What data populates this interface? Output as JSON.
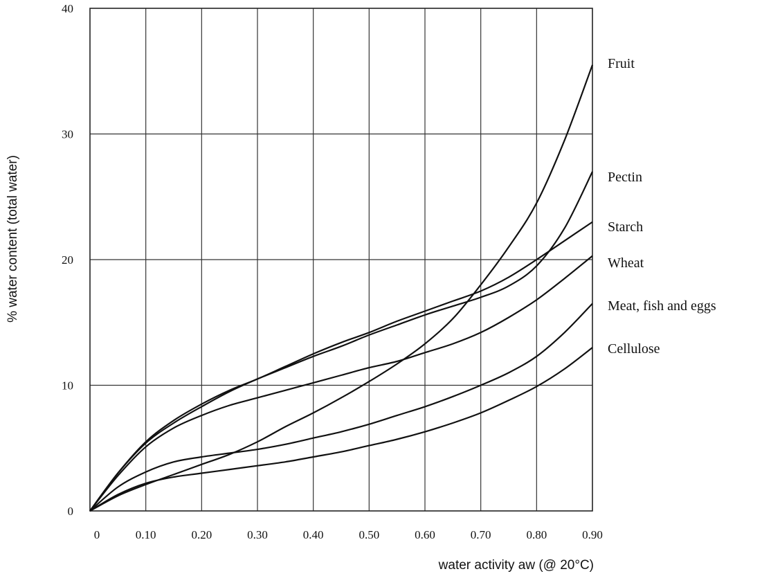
{
  "chart_data": {
    "type": "line",
    "xlabel": "water activity aw (@ 20°C)",
    "ylabel": "% water content (total water)",
    "xlim": [
      0,
      0.9
    ],
    "ylim": [
      0,
      40
    ],
    "x_ticks": [
      "0",
      "0.10",
      "0.20",
      "0.30",
      "0.40",
      "0.50",
      "0.60",
      "0.70",
      "0.80",
      "0.90"
    ],
    "y_ticks": [
      "0",
      "10",
      "20",
      "30",
      "40"
    ],
    "grid": true,
    "x_grid": [
      0.1,
      0.2,
      0.3,
      0.4,
      0.5,
      0.6,
      0.7,
      0.8
    ],
    "y_grid": [
      10,
      20,
      30
    ],
    "x": [
      0,
      0.05,
      0.1,
      0.15,
      0.2,
      0.25,
      0.3,
      0.35,
      0.4,
      0.45,
      0.5,
      0.55,
      0.6,
      0.65,
      0.7,
      0.75,
      0.8,
      0.85,
      0.9
    ],
    "series": [
      {
        "name": "Fruit",
        "values": [
          0,
          1.2,
          2.1,
          2.9,
          3.7,
          4.5,
          5.5,
          6.7,
          7.8,
          9.0,
          10.3,
          11.7,
          13.3,
          15.3,
          18.0,
          21.0,
          24.5,
          29.5,
          35.5
        ]
      },
      {
        "name": "Pectin",
        "values": [
          0,
          3.0,
          5.4,
          7.0,
          8.3,
          9.5,
          10.5,
          11.4,
          12.3,
          13.1,
          14.0,
          14.8,
          15.6,
          16.3,
          17.0,
          17.9,
          19.5,
          22.5,
          27.0
        ]
      },
      {
        "name": "Starch",
        "values": [
          0,
          3.0,
          5.5,
          7.2,
          8.5,
          9.6,
          10.5,
          11.5,
          12.5,
          13.4,
          14.2,
          15.1,
          15.9,
          16.7,
          17.5,
          18.6,
          20.0,
          21.5,
          23.0
        ]
      },
      {
        "name": "Wheat",
        "values": [
          0,
          2.8,
          5.1,
          6.6,
          7.6,
          8.4,
          9.0,
          9.6,
          10.2,
          10.8,
          11.4,
          11.9,
          12.6,
          13.3,
          14.2,
          15.4,
          16.8,
          18.5,
          20.3
        ]
      },
      {
        "name": "Meat, fish and eggs",
        "values": [
          0,
          1.9,
          3.1,
          3.9,
          4.3,
          4.6,
          4.9,
          5.3,
          5.8,
          6.3,
          6.9,
          7.6,
          8.3,
          9.1,
          10.0,
          11.0,
          12.3,
          14.2,
          16.5
        ]
      },
      {
        "name": "Cellulose",
        "values": [
          0,
          1.3,
          2.2,
          2.7,
          3.0,
          3.3,
          3.6,
          3.9,
          4.3,
          4.7,
          5.2,
          5.7,
          6.3,
          7.0,
          7.8,
          8.8,
          9.9,
          11.3,
          13.0
        ]
      }
    ]
  }
}
